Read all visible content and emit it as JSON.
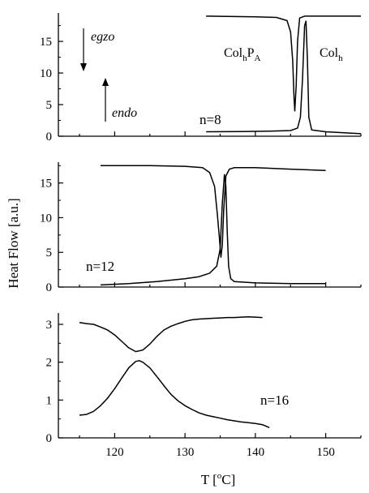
{
  "figure": {
    "xlabel": "T [°C]",
    "xlabel_base": "T [",
    "xlabel_sup": "o",
    "xlabel_tail": "C]",
    "ylabel": "Heat Flow  [a.u.]",
    "colors": {
      "axis": "#000000",
      "line": "#000000",
      "background": "#ffffff"
    }
  },
  "chart_data": [
    {
      "type": "line",
      "panel_label": "n=8",
      "xlim": [
        112,
        155
      ],
      "ylim": [
        0,
        19.5
      ],
      "x_ticks": [],
      "y_ticks": [
        0,
        5,
        10,
        15
      ],
      "y_tick_labels": [
        "0",
        "5",
        "10",
        "15"
      ],
      "annotations": {
        "exo": "egzo",
        "endo": "endo",
        "phase_left_main": "Col",
        "phase_left_sub1": "h",
        "phase_left_mid": "P",
        "phase_left_sub2": "A",
        "phase_right_main": "Col",
        "phase_right_sub": "h"
      },
      "series": [
        {
          "role": "cooling",
          "x": [
            133,
            140,
            143,
            144.5,
            145.0,
            145.3,
            145.5,
            145.6,
            145.8,
            146.0,
            146.3,
            147,
            150,
            155
          ],
          "y": [
            19.0,
            18.9,
            18.8,
            18.3,
            16.5,
            12.0,
            6.0,
            4.0,
            8.0,
            15.0,
            18.7,
            19.0,
            19.0,
            19.0
          ]
        },
        {
          "role": "heating",
          "x": [
            133,
            138,
            142,
            145,
            146.0,
            146.4,
            146.7,
            147.0,
            147.2,
            147.4,
            147.6,
            148.0,
            150,
            155
          ],
          "y": [
            0.7,
            0.75,
            0.8,
            0.9,
            1.3,
            3.0,
            9.0,
            17.5,
            18.2,
            12.0,
            3.0,
            1.0,
            0.7,
            0.4
          ]
        }
      ]
    },
    {
      "type": "line",
      "panel_label": "n=12",
      "xlim": [
        112,
        155
      ],
      "ylim": [
        0,
        18
      ],
      "x_ticks": [],
      "y_ticks": [
        0,
        5,
        10,
        15
      ],
      "y_tick_labels": [
        "0",
        "5",
        "10",
        "15"
      ],
      "series": [
        {
          "role": "cooling",
          "x": [
            118,
            125,
            130,
            132.5,
            133.5,
            134.2,
            134.6,
            134.9,
            135.1,
            135.3,
            135.5,
            135.8,
            136.3,
            137,
            140,
            145,
            150
          ],
          "y": [
            17.5,
            17.5,
            17.4,
            17.2,
            16.5,
            14.5,
            10.5,
            7.0,
            4.3,
            6.0,
            11.0,
            16.0,
            17.0,
            17.2,
            17.2,
            17.0,
            16.8
          ]
        },
        {
          "role": "heating",
          "x": [
            118,
            122,
            126,
            130,
            132,
            133.5,
            134.5,
            135.0,
            135.3,
            135.6,
            135.8,
            136.0,
            136.2,
            136.5,
            137,
            140,
            145,
            150
          ],
          "y": [
            0.3,
            0.5,
            0.8,
            1.2,
            1.5,
            2.0,
            3.0,
            5.5,
            12.0,
            16.2,
            14.5,
            8.0,
            3.0,
            1.2,
            0.8,
            0.6,
            0.5,
            0.5
          ]
        }
      ]
    },
    {
      "type": "line",
      "panel_label": "n=16",
      "xlim": [
        112,
        155
      ],
      "ylim": [
        0,
        3.3
      ],
      "x_ticks": [
        120,
        130,
        140,
        150
      ],
      "x_tick_labels": [
        "120",
        "130",
        "140",
        "150"
      ],
      "y_ticks": [
        0,
        1,
        2,
        3
      ],
      "y_tick_labels": [
        "0",
        "1",
        "2",
        "3"
      ],
      "series": [
        {
          "role": "cooling",
          "x": [
            115,
            116,
            117,
            118,
            119,
            120,
            121,
            122,
            123,
            124,
            125,
            126,
            127,
            128,
            129,
            130,
            131,
            132,
            133,
            134,
            135,
            136,
            137,
            138,
            139,
            140,
            141
          ],
          "y": [
            3.05,
            3.02,
            3.0,
            2.93,
            2.85,
            2.72,
            2.55,
            2.38,
            2.28,
            2.32,
            2.48,
            2.68,
            2.85,
            2.95,
            3.02,
            3.08,
            3.12,
            3.14,
            3.15,
            3.16,
            3.17,
            3.18,
            3.18,
            3.19,
            3.2,
            3.19,
            3.18
          ]
        },
        {
          "role": "heating",
          "x": [
            115,
            116,
            117,
            118,
            119,
            120,
            121,
            122,
            123,
            123.5,
            124,
            125,
            126,
            127,
            128,
            129,
            130,
            131,
            132,
            133,
            134,
            135,
            136,
            137,
            138,
            139,
            140,
            141,
            142
          ],
          "y": [
            0.6,
            0.62,
            0.7,
            0.85,
            1.05,
            1.3,
            1.58,
            1.85,
            2.02,
            2.04,
            2.0,
            1.85,
            1.62,
            1.38,
            1.15,
            0.98,
            0.85,
            0.75,
            0.66,
            0.6,
            0.56,
            0.52,
            0.48,
            0.45,
            0.42,
            0.4,
            0.38,
            0.35,
            0.27
          ]
        }
      ]
    }
  ]
}
